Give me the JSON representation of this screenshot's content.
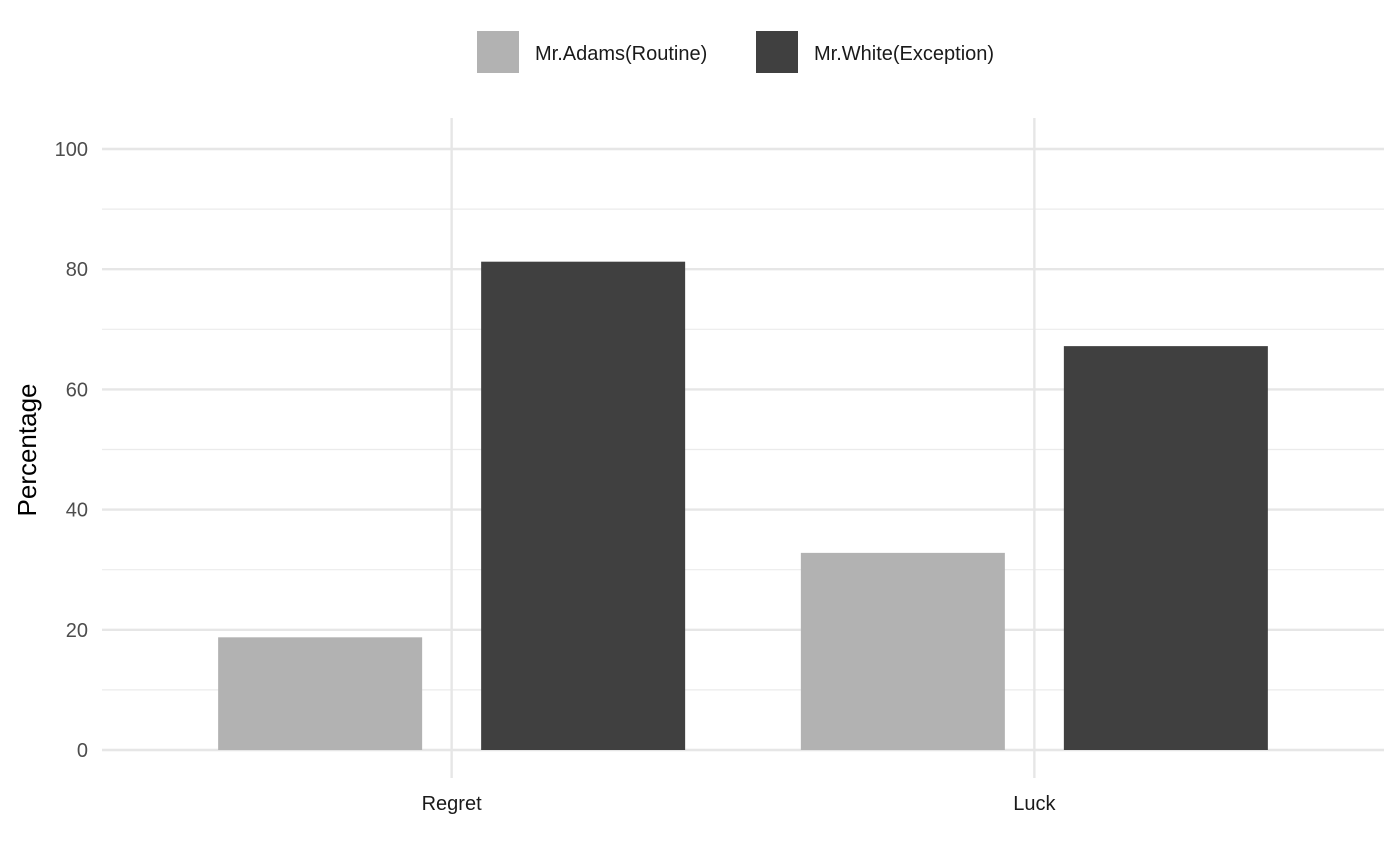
{
  "chart_data": {
    "type": "bar",
    "categories": [
      "Regret",
      "Luck"
    ],
    "series": [
      {
        "name": "Mr.Adams(Routine)",
        "values": [
          18.75,
          32.8
        ],
        "color": "#b2b2b2"
      },
      {
        "name": "Mr.White(Exception)",
        "values": [
          81.25,
          67.2
        ],
        "color": "#404040"
      }
    ],
    "title": "",
    "xlabel": "",
    "ylabel": "Percentage",
    "ylim": [
      0,
      100
    ],
    "yticks": [
      0,
      20,
      40,
      60,
      80,
      100
    ],
    "grid": true,
    "legend_position": "top"
  }
}
